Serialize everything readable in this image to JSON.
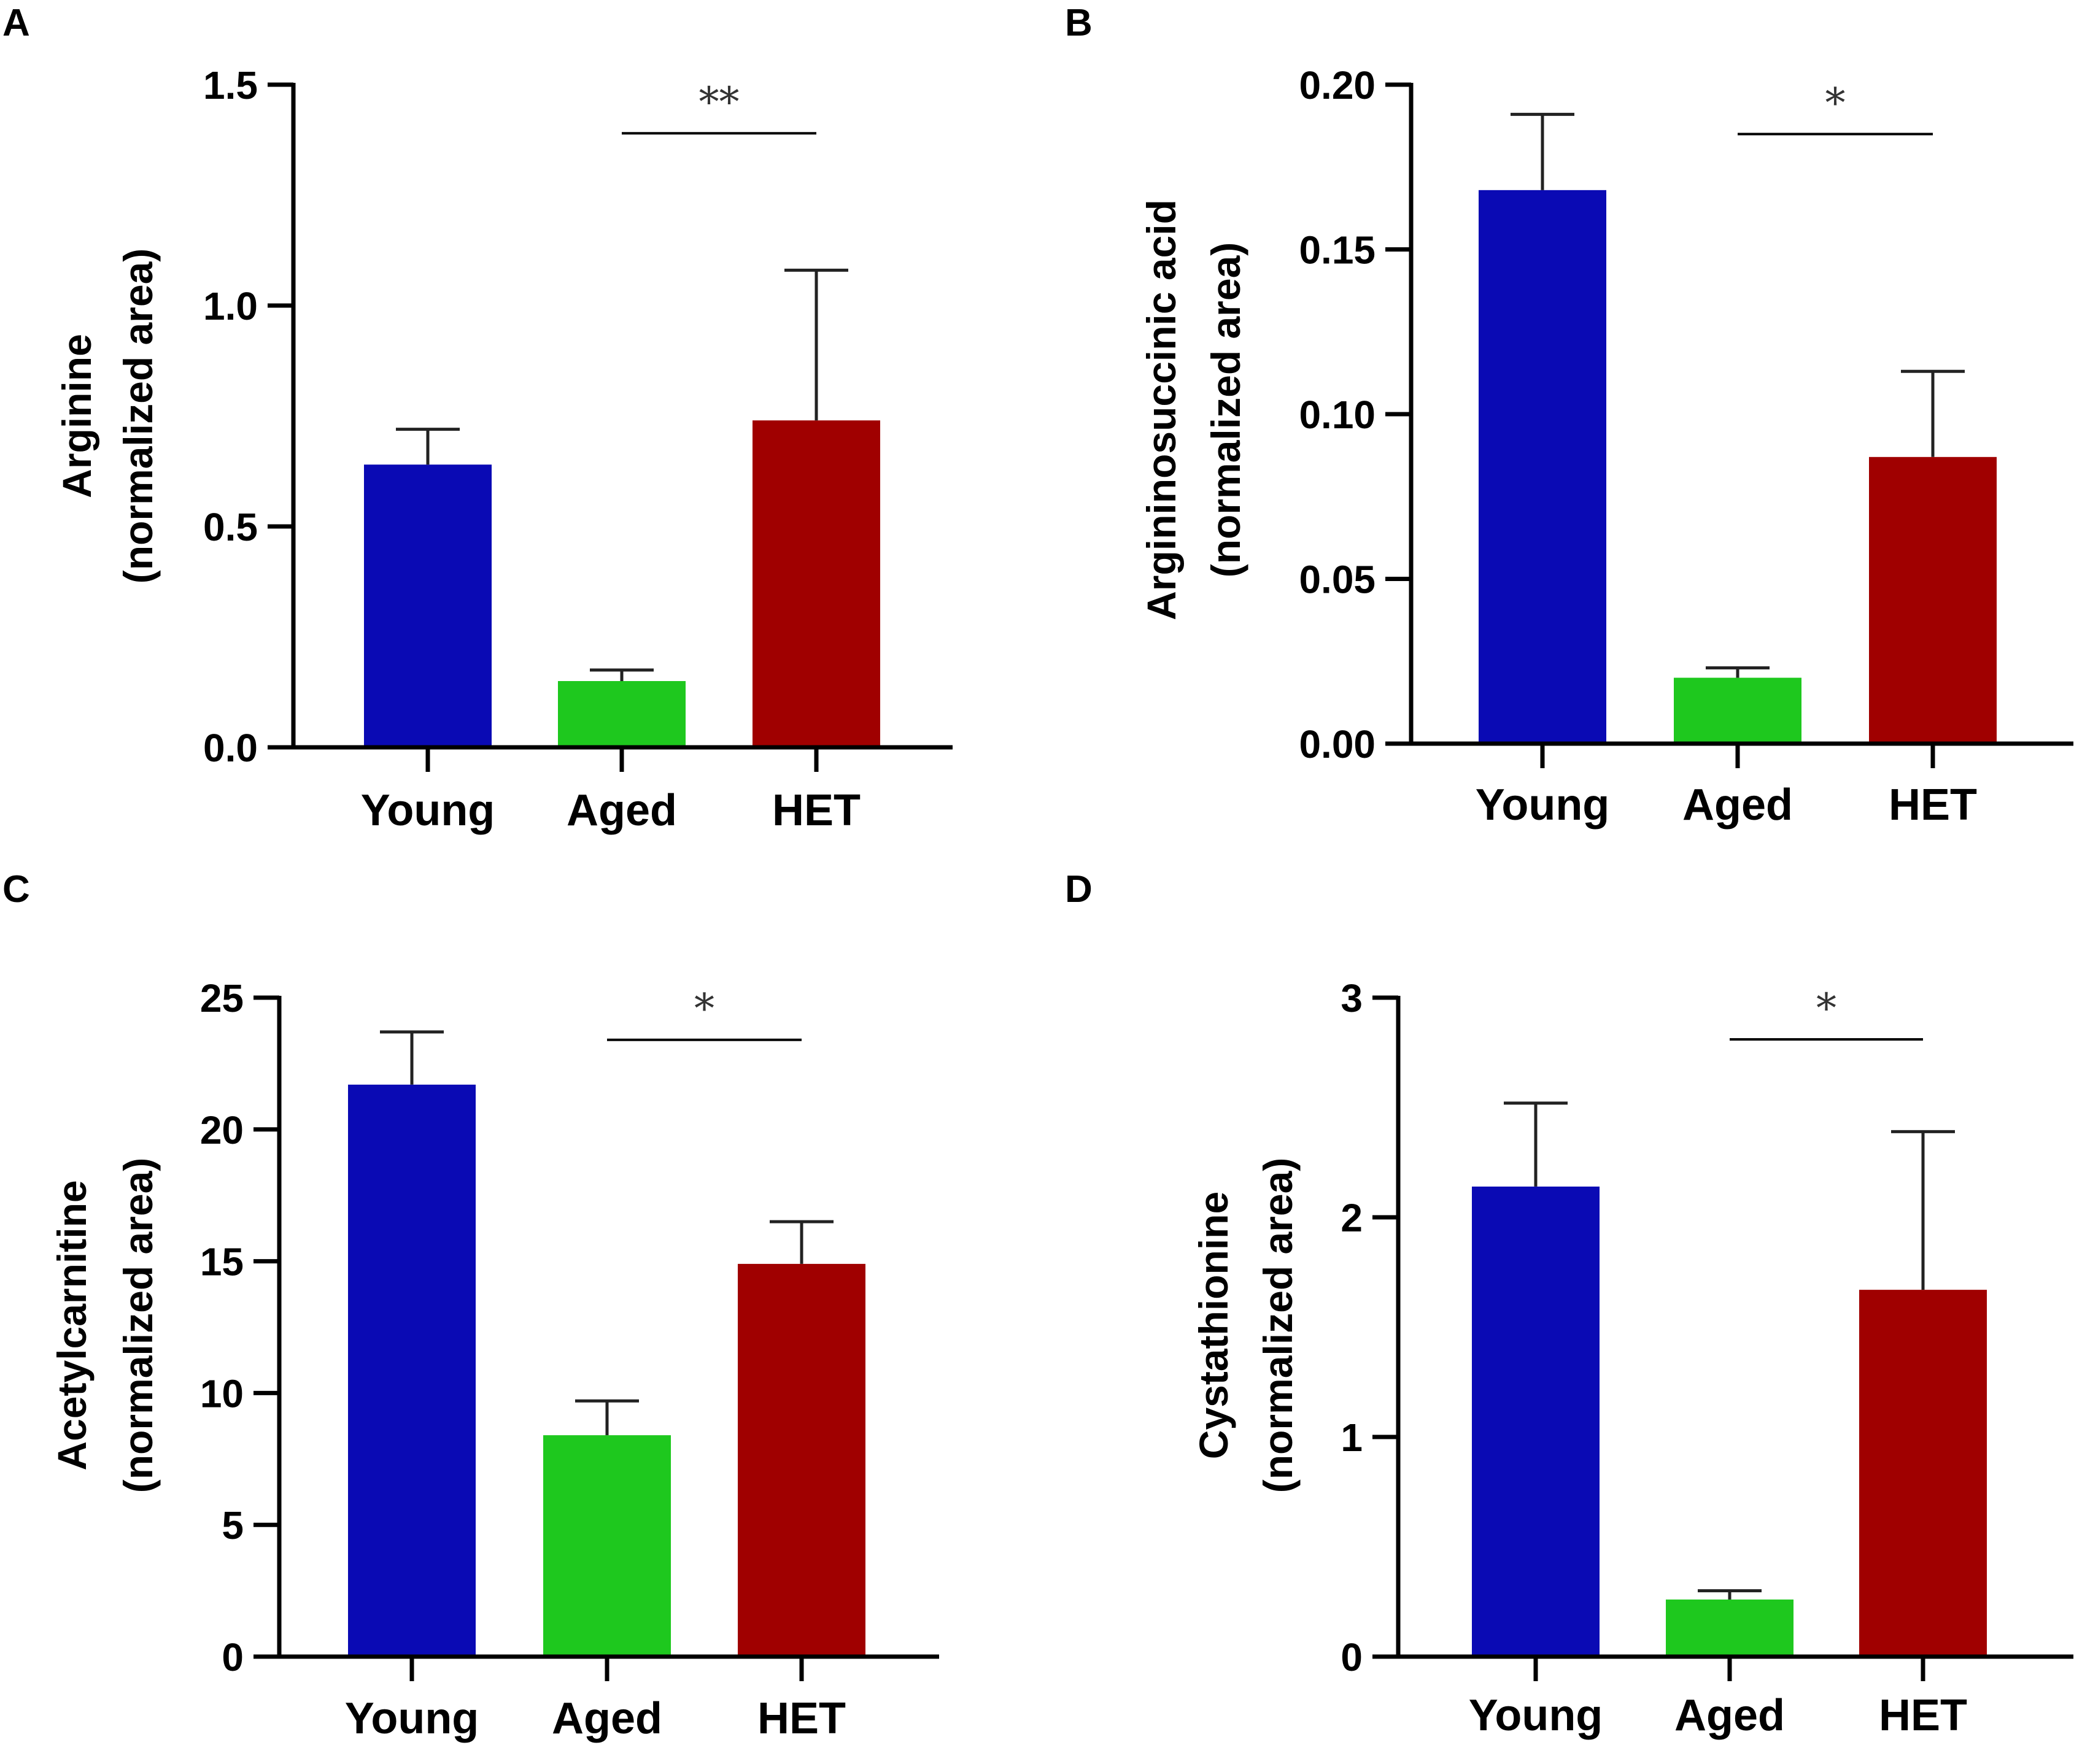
{
  "figure": {
    "domain": "bar chart figure, four panels"
  },
  "chart_data": [
    {
      "panel": "A",
      "type": "bar",
      "categories": [
        "Young",
        "Aged",
        "HET"
      ],
      "values": [
        0.64,
        0.15,
        0.74
      ],
      "errors": [
        0.08,
        0.025,
        0.34
      ],
      "ylabel_line1": "Arginine",
      "ylabel_line2": "(normalized area)",
      "ylim": [
        0,
        1.5
      ],
      "yticks": [
        0,
        0.5,
        1.0,
        1.5
      ],
      "ytick_labels": [
        "0.0",
        "0.5",
        "1.0",
        "1.5"
      ],
      "significance": {
        "from": "Aged",
        "to": "HET",
        "label": "**",
        "level": 1.39
      },
      "colors": [
        "#0a0ab4",
        "#1ec81e",
        "#a00000"
      ]
    },
    {
      "panel": "B",
      "type": "bar",
      "categories": [
        "Young",
        "Aged",
        "HET"
      ],
      "values": [
        0.168,
        0.02,
        0.087
      ],
      "errors": [
        0.023,
        0.003,
        0.026
      ],
      "ylabel_line1": "Argininosuccinic acid",
      "ylabel_line2": "(normalized area)",
      "ylim": [
        0,
        0.2
      ],
      "yticks": [
        0,
        0.05,
        0.1,
        0.15,
        0.2
      ],
      "ytick_labels": [
        "0.00",
        "0.05",
        "0.10",
        "0.15",
        "0.20"
      ],
      "significance": {
        "from": "Aged",
        "to": "HET",
        "label": "*",
        "level": 0.185
      },
      "colors": [
        "#0a0ab4",
        "#1ec81e",
        "#a00000"
      ]
    },
    {
      "panel": "C",
      "type": "bar",
      "categories": [
        "Young",
        "Aged",
        "HET"
      ],
      "values": [
        21.7,
        8.4,
        14.9
      ],
      "errors": [
        2.0,
        1.3,
        1.6
      ],
      "ylabel_line1": "Acetylcarnitine",
      "ylabel_line2": "(normalized area)",
      "ylim": [
        0,
        25
      ],
      "yticks": [
        0,
        5,
        10,
        15,
        20,
        25
      ],
      "ytick_labels": [
        "0",
        "5",
        "10",
        "15",
        "20",
        "25"
      ],
      "significance": {
        "from": "Aged",
        "to": "HET",
        "label": "*",
        "level": 23.4
      },
      "colors": [
        "#0a0ab4",
        "#1ec81e",
        "#a00000"
      ]
    },
    {
      "panel": "D",
      "type": "bar",
      "categories": [
        "Young",
        "Aged",
        "HET"
      ],
      "values": [
        2.14,
        0.26,
        1.67
      ],
      "errors": [
        0.38,
        0.04,
        0.72
      ],
      "ylabel_line1": "Cystathionine",
      "ylabel_line2": "(normalized area)",
      "ylim": [
        0,
        3
      ],
      "yticks": [
        0,
        1,
        2,
        3
      ],
      "ytick_labels": [
        "0",
        "1",
        "2",
        "3"
      ],
      "significance": {
        "from": "Aged",
        "to": "HET",
        "label": "*",
        "level": 2.81
      },
      "colors": [
        "#0a0ab4",
        "#1ec81e",
        "#a00000"
      ]
    }
  ]
}
